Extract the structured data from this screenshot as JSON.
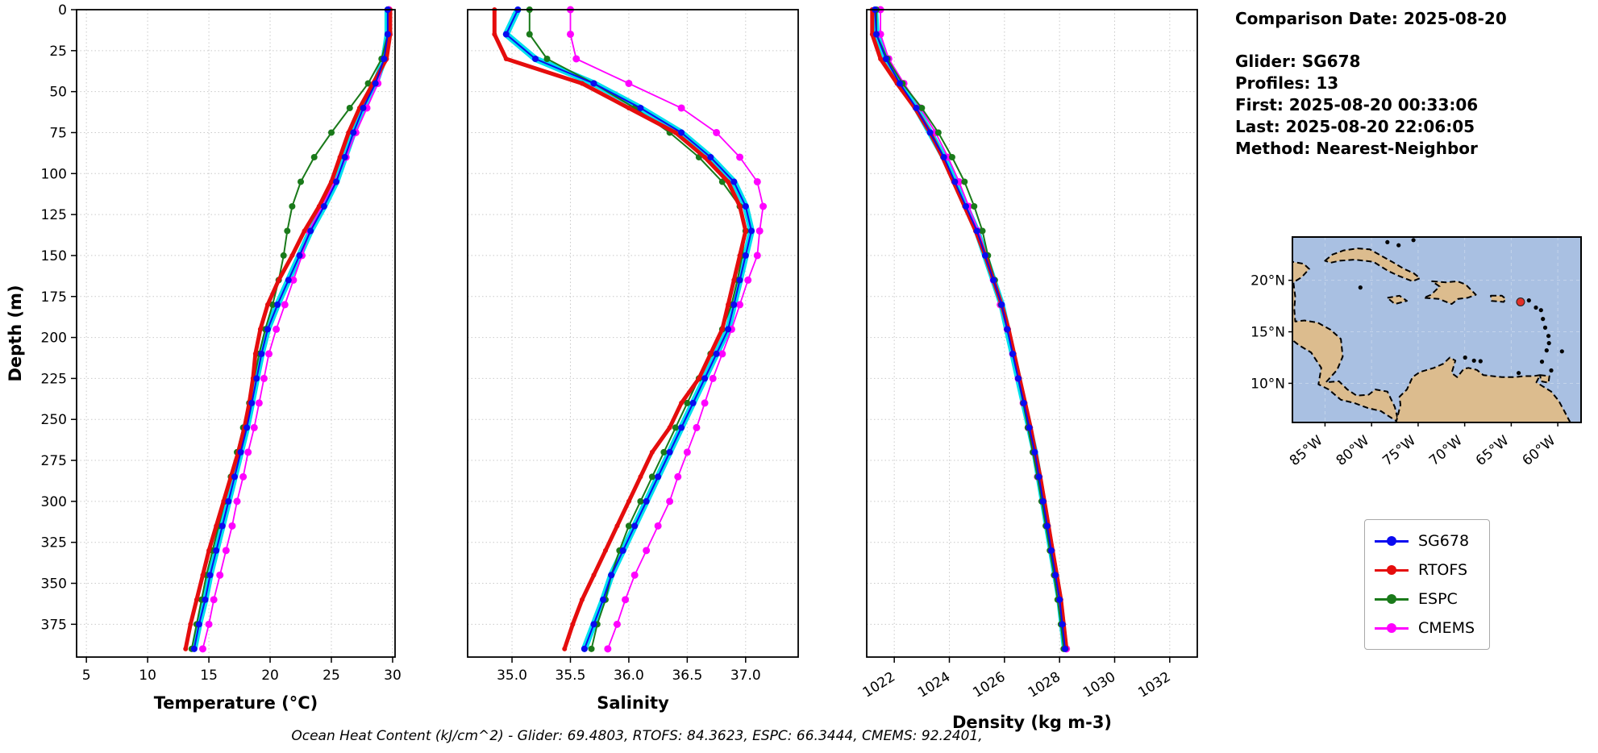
{
  "info_panel": {
    "comparison_date": "Comparison Date: 2025-08-20",
    "glider": "Glider: SG678",
    "profiles": "Profiles: 13",
    "first": "First: 2025-08-20 00:33:06",
    "last": "Last: 2025-08-20 22:06:05",
    "method": "Method: Nearest-Neighbor"
  },
  "footer": {
    "text": "Ocean Heat Content (kJ/cm^2) - Glider: 69.4803,  RTOFS: 84.3623,  ESPC: 66.3444,  CMEMS: 92.2401,"
  },
  "legend": {
    "entries": [
      {
        "label": "SG678",
        "color": "#0a0af0"
      },
      {
        "label": "RTOFS",
        "color": "#e50d0d"
      },
      {
        "label": "ESPC",
        "color": "#1a7a1a"
      },
      {
        "label": "CMEMS",
        "color": "#ff00ff"
      }
    ]
  },
  "map": {
    "lat_ticks": [
      {
        "label": "20°N",
        "lat": 20
      },
      {
        "label": "15°N",
        "lat": 15
      },
      {
        "label": "10°N",
        "lat": 10
      }
    ],
    "lon_ticks": [
      {
        "label": "85°W",
        "lon": -85
      },
      {
        "label": "80°W",
        "lon": -80
      },
      {
        "label": "75°W",
        "lon": -75
      },
      {
        "label": "70°W",
        "lon": -70
      },
      {
        "label": "65°W",
        "lon": -65
      },
      {
        "label": "60°W",
        "lon": -60
      }
    ],
    "marker": {
      "lon": -64.0,
      "lat": 17.9,
      "color": "#e03028"
    },
    "ocean_color": "#a9c0e2",
    "land_color": "#dcbc8e"
  },
  "chart_data": [
    {
      "type": "line",
      "xlabel": "Temperature (°C)",
      "ylabel": "Depth (m)",
      "xlim": [
        4.2,
        30.2
      ],
      "xticks": [
        5,
        10,
        15,
        20,
        25,
        30
      ],
      "xtick_labels": [
        "5",
        "10",
        "15",
        "20",
        "25",
        "30"
      ],
      "ylim": [
        0,
        395
      ],
      "yticks": [
        0,
        25,
        50,
        75,
        100,
        125,
        150,
        175,
        200,
        225,
        250,
        275,
        300,
        325,
        350,
        375
      ],
      "y_inverted": true,
      "grid": true,
      "depths": [
        0,
        15,
        30,
        45,
        60,
        75,
        90,
        105,
        120,
        135,
        150,
        165,
        180,
        195,
        210,
        225,
        240,
        255,
        270,
        285,
        300,
        315,
        330,
        345,
        360,
        375,
        390
      ],
      "series": [
        {
          "name": "Glider profiles",
          "color": "#00e0ee",
          "linewidth": 8,
          "marker": 0,
          "values": [
            29.6,
            29.6,
            29.3,
            28.6,
            27.6,
            26.8,
            26.1,
            25.4,
            24.4,
            23.3,
            22.4,
            21.5,
            20.6,
            19.8,
            19.3,
            18.9,
            18.5,
            18.1,
            17.6,
            17.1,
            16.6,
            16.1,
            15.6,
            15.1,
            14.7,
            14.2,
            13.8
          ]
        },
        {
          "name": "CMEMS",
          "color": "#ff00ff",
          "linewidth": 1.8,
          "marker": 4.5,
          "values": [
            29.7,
            29.7,
            29.4,
            28.8,
            27.9,
            27.0,
            26.2,
            25.3,
            24.2,
            23.2,
            22.6,
            21.9,
            21.2,
            20.5,
            19.9,
            19.5,
            19.1,
            18.7,
            18.2,
            17.8,
            17.3,
            16.9,
            16.4,
            15.9,
            15.4,
            15.0,
            14.5
          ]
        },
        {
          "name": "ESPC",
          "color": "#1a7a1a",
          "linewidth": 2,
          "marker": 4,
          "values": [
            29.6,
            29.6,
            29.1,
            28.0,
            26.5,
            25.0,
            23.6,
            22.5,
            21.8,
            21.4,
            21.1,
            20.7,
            20.2,
            19.6,
            19.1,
            18.7,
            18.3,
            17.8,
            17.3,
            16.8,
            16.3,
            15.8,
            15.3,
            14.8,
            14.4,
            14.0,
            13.6
          ]
        },
        {
          "name": "RTOFS",
          "color": "#e50d0d",
          "linewidth": 5,
          "marker": 3,
          "values": [
            29.8,
            29.8,
            29.5,
            28.4,
            27.3,
            26.4,
            25.7,
            25.0,
            24.0,
            22.8,
            21.8,
            20.7,
            19.8,
            19.2,
            18.8,
            18.6,
            18.3,
            17.9,
            17.4,
            16.8,
            16.2,
            15.6,
            15.0,
            14.5,
            14.0,
            13.5,
            13.1
          ]
        },
        {
          "name": "SG678",
          "color": "#0a0af0",
          "linewidth": 2,
          "marker": 4,
          "values": [
            29.6,
            29.6,
            29.3,
            28.6,
            27.6,
            26.8,
            26.1,
            25.4,
            24.4,
            23.3,
            22.4,
            21.5,
            20.6,
            19.8,
            19.3,
            18.9,
            18.5,
            18.1,
            17.6,
            17.1,
            16.6,
            16.1,
            15.6,
            15.1,
            14.7,
            14.2,
            13.8
          ]
        }
      ]
    },
    {
      "type": "line",
      "xlabel": "Salinity",
      "ylabel": "",
      "xlim": [
        34.62,
        37.45
      ],
      "xticks": [
        35.0,
        35.5,
        36.0,
        36.5,
        37.0
      ],
      "xtick_labels": [
        "35.0",
        "35.5",
        "36.0",
        "36.5",
        "37.0"
      ],
      "ylim": [
        0,
        395
      ],
      "yticks": [
        0,
        25,
        50,
        75,
        100,
        125,
        150,
        175,
        200,
        225,
        250,
        275,
        300,
        325,
        350,
        375
      ],
      "y_inverted": true,
      "grid": true,
      "depths": [
        0,
        15,
        30,
        45,
        60,
        75,
        90,
        105,
        120,
        135,
        150,
        165,
        180,
        195,
        210,
        225,
        240,
        255,
        270,
        285,
        300,
        315,
        330,
        345,
        360,
        375,
        390
      ],
      "series": [
        {
          "name": "Glider profiles",
          "color": "#00e0ee",
          "linewidth": 8,
          "marker": 0,
          "values": [
            35.05,
            34.95,
            35.2,
            35.7,
            36.1,
            36.45,
            36.7,
            36.9,
            37.0,
            37.05,
            37.0,
            36.95,
            36.9,
            36.85,
            36.75,
            36.65,
            36.55,
            36.45,
            36.35,
            36.25,
            36.15,
            36.05,
            35.95,
            35.85,
            35.78,
            35.7,
            35.62
          ]
        },
        {
          "name": "CMEMS",
          "color": "#ff00ff",
          "linewidth": 1.8,
          "marker": 4.5,
          "values": [
            35.5,
            35.5,
            35.55,
            36.0,
            36.45,
            36.75,
            36.95,
            37.1,
            37.15,
            37.12,
            37.1,
            37.02,
            36.95,
            36.88,
            36.8,
            36.72,
            36.65,
            36.58,
            36.5,
            36.42,
            36.35,
            36.25,
            36.15,
            36.05,
            35.97,
            35.9,
            35.82
          ]
        },
        {
          "name": "ESPC",
          "color": "#1a7a1a",
          "linewidth": 2,
          "marker": 4,
          "values": [
            35.15,
            35.15,
            35.3,
            35.7,
            36.05,
            36.35,
            36.6,
            36.8,
            36.95,
            37.0,
            36.97,
            36.93,
            36.88,
            36.8,
            36.7,
            36.6,
            36.5,
            36.4,
            36.3,
            36.2,
            36.1,
            36.0,
            35.92,
            35.85,
            35.8,
            35.73,
            35.68
          ]
        },
        {
          "name": "RTOFS",
          "color": "#e50d0d",
          "linewidth": 5,
          "marker": 3,
          "values": [
            34.85,
            34.85,
            34.95,
            35.6,
            36.0,
            36.4,
            36.65,
            36.85,
            36.95,
            37.0,
            36.95,
            36.9,
            36.85,
            36.8,
            36.7,
            36.6,
            36.45,
            36.35,
            36.2,
            36.1,
            36.0,
            35.9,
            35.8,
            35.7,
            35.6,
            35.52,
            35.45
          ]
        },
        {
          "name": "SG678",
          "color": "#0a0af0",
          "linewidth": 2,
          "marker": 4,
          "values": [
            35.05,
            34.95,
            35.2,
            35.7,
            36.1,
            36.45,
            36.7,
            36.9,
            37.0,
            37.05,
            37.0,
            36.95,
            36.9,
            36.85,
            36.75,
            36.65,
            36.55,
            36.45,
            36.35,
            36.25,
            36.15,
            36.05,
            35.95,
            35.85,
            35.78,
            35.7,
            35.62
          ]
        }
      ]
    },
    {
      "type": "line",
      "xlabel": "Density (kg m-3)",
      "ylabel": "",
      "xlim": [
        1021,
        1033
      ],
      "xticks": [
        1022,
        1024,
        1026,
        1028,
        1030,
        1032
      ],
      "xtick_labels": [
        "1022",
        "1024",
        "1026",
        "1028",
        "1030",
        "1032"
      ],
      "ylim": [
        0,
        395
      ],
      "yticks": [
        0,
        25,
        50,
        75,
        100,
        125,
        150,
        175,
        200,
        225,
        250,
        275,
        300,
        325,
        350,
        375
      ],
      "y_inverted": true,
      "grid": true,
      "depths": [
        0,
        15,
        30,
        45,
        60,
        75,
        90,
        105,
        120,
        135,
        150,
        165,
        180,
        195,
        210,
        225,
        240,
        255,
        270,
        285,
        300,
        315,
        330,
        345,
        360,
        375,
        390
      ],
      "series": [
        {
          "name": "Glider profiles",
          "color": "#00e0ee",
          "linewidth": 8,
          "marker": 0,
          "values": [
            1021.3,
            1021.35,
            1021.7,
            1022.2,
            1022.8,
            1023.3,
            1023.8,
            1024.2,
            1024.6,
            1025.0,
            1025.3,
            1025.6,
            1025.9,
            1026.1,
            1026.3,
            1026.5,
            1026.7,
            1026.9,
            1027.1,
            1027.25,
            1027.4,
            1027.55,
            1027.7,
            1027.85,
            1028.0,
            1028.1,
            1028.2
          ]
        },
        {
          "name": "CMEMS",
          "color": "#ff00ff",
          "linewidth": 1.8,
          "marker": 4.5,
          "values": [
            1021.5,
            1021.5,
            1021.8,
            1022.35,
            1022.95,
            1023.5,
            1023.95,
            1024.35,
            1024.7,
            1025.05,
            1025.35,
            1025.6,
            1025.85,
            1026.1,
            1026.3,
            1026.5,
            1026.68,
            1026.86,
            1027.05,
            1027.2,
            1027.38,
            1027.52,
            1027.68,
            1027.82,
            1027.97,
            1028.1,
            1028.25
          ]
        },
        {
          "name": "ESPC",
          "color": "#1a7a1a",
          "linewidth": 2,
          "marker": 4,
          "values": [
            1021.35,
            1021.35,
            1021.75,
            1022.3,
            1023.0,
            1023.6,
            1024.1,
            1024.55,
            1024.9,
            1025.2,
            1025.4,
            1025.65,
            1025.88,
            1026.1,
            1026.3,
            1026.5,
            1026.68,
            1026.85,
            1027.03,
            1027.2,
            1027.35,
            1027.5,
            1027.65,
            1027.8,
            1027.93,
            1028.05,
            1028.15
          ]
        },
        {
          "name": "RTOFS",
          "color": "#e50d0d",
          "linewidth": 5,
          "marker": 3,
          "values": [
            1021.2,
            1021.2,
            1021.5,
            1022.1,
            1022.75,
            1023.3,
            1023.75,
            1024.15,
            1024.55,
            1024.95,
            1025.3,
            1025.6,
            1025.9,
            1026.15,
            1026.35,
            1026.55,
            1026.75,
            1026.95,
            1027.12,
            1027.3,
            1027.45,
            1027.6,
            1027.75,
            1027.9,
            1028.05,
            1028.15,
            1028.25
          ]
        },
        {
          "name": "SG678",
          "color": "#0a0af0",
          "linewidth": 2,
          "marker": 4,
          "values": [
            1021.3,
            1021.35,
            1021.7,
            1022.2,
            1022.8,
            1023.3,
            1023.8,
            1024.2,
            1024.6,
            1025.0,
            1025.3,
            1025.6,
            1025.9,
            1026.1,
            1026.3,
            1026.5,
            1026.7,
            1026.9,
            1027.1,
            1027.25,
            1027.4,
            1027.55,
            1027.7,
            1027.85,
            1028.0,
            1028.1,
            1028.2
          ]
        }
      ]
    }
  ]
}
